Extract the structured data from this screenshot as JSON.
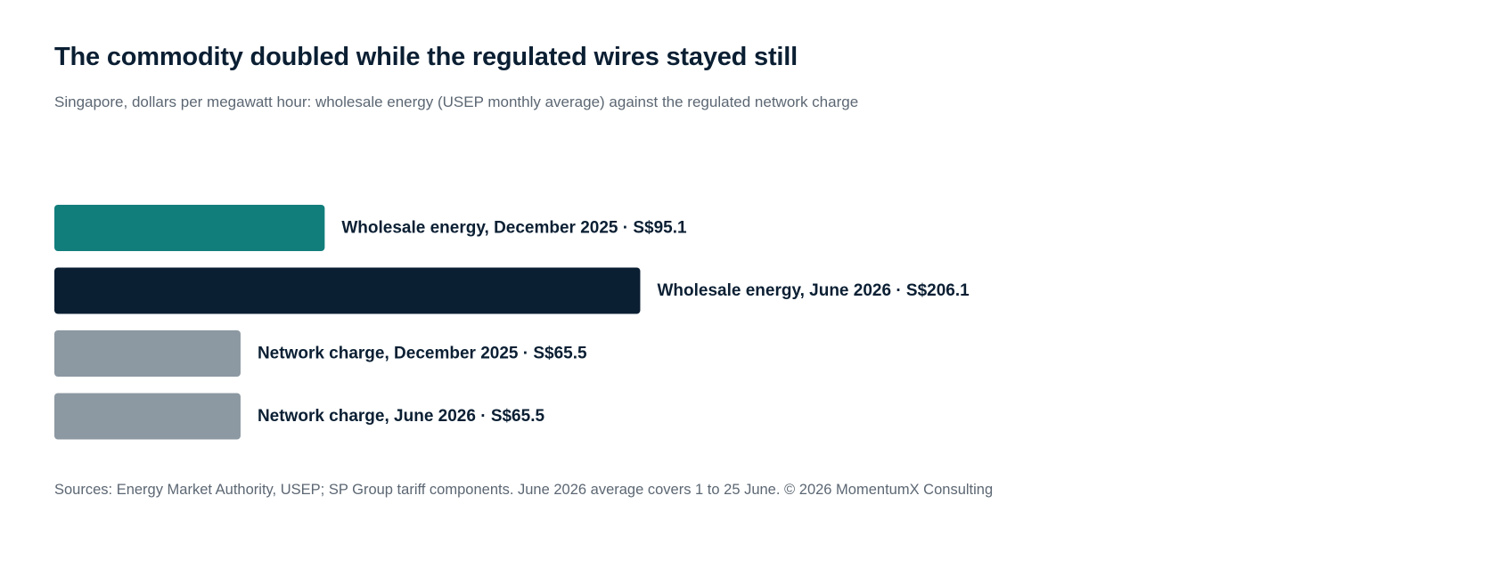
{
  "header": {
    "title": "The commodity doubled while the regulated wires stayed still",
    "subtitle": "Singapore, dollars per megawatt hour: wholesale energy (USEP monthly average) against the regulated network charge"
  },
  "chart_data": {
    "type": "bar",
    "orientation": "horizontal",
    "categories": [
      "Wholesale energy, December 2025",
      "Wholesale energy, June 2026",
      "Network charge, December 2025",
      "Network charge, June 2026"
    ],
    "values": [
      95.1,
      206.1,
      65.5,
      65.5
    ],
    "labels": [
      "Wholesale energy, December 2025 · S$95.1",
      "Wholesale energy, June 2026 · S$206.1",
      "Network charge, December 2025 · S$65.5",
      "Network charge, June 2026 · S$65.5"
    ],
    "colors": [
      "#127e7c",
      "#0b1f33",
      "#8c98a2",
      "#8c98a2"
    ],
    "unit": "S$ per MWh",
    "grid": false,
    "legend": "none"
  },
  "footer": {
    "source": "Sources: Energy Market Authority, USEP; SP Group tariff components. June 2026 average covers 1 to 25 June. © 2026 MomentumX Consulting"
  }
}
